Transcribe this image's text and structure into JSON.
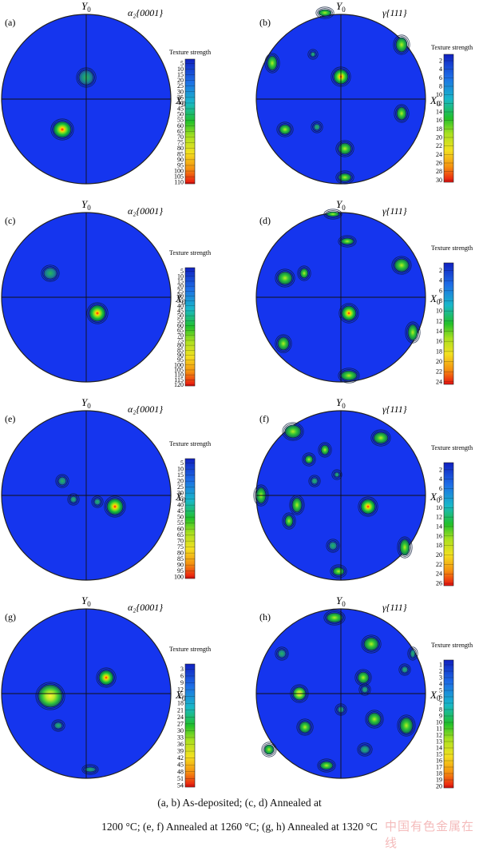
{
  "figure": {
    "axis_labels": {
      "x": "X",
      "x_sub": "0",
      "y": "Y",
      "y_sub": "0"
    },
    "legend_title": "Texture strength",
    "panels": [
      {
        "id": "a",
        "label": "(a)",
        "title": "α₂{0001}",
        "legend_ticks": [
          "5",
          "10",
          "15",
          "20",
          "25",
          "30",
          "35",
          "40",
          "45",
          "50",
          "55",
          "60",
          "65",
          "70",
          "75",
          "80",
          "85",
          "90",
          "95",
          "100",
          "105",
          "110"
        ]
      },
      {
        "id": "b",
        "label": "(b)",
        "title": "γ{111}",
        "legend_ticks": [
          "2",
          "4",
          "6",
          "8",
          "10",
          "12",
          "14",
          "16",
          "18",
          "20",
          "22",
          "24",
          "26",
          "28",
          "30"
        ]
      },
      {
        "id": "c",
        "label": "(c)",
        "title": "α₂{0001}",
        "legend_ticks": [
          "5",
          "10",
          "15",
          "20",
          "25",
          "30",
          "35",
          "40",
          "45",
          "50",
          "55",
          "60",
          "65",
          "70",
          "75",
          "80",
          "85",
          "90",
          "95",
          "100",
          "105",
          "110",
          "115",
          "120"
        ]
      },
      {
        "id": "d",
        "label": "(d)",
        "title": "γ{111}",
        "legend_ticks": [
          "2",
          "4",
          "6",
          "8",
          "10",
          "12",
          "14",
          "16",
          "18",
          "20",
          "22",
          "24"
        ]
      },
      {
        "id": "e",
        "label": "(e)",
        "title": "α₂{0001}",
        "legend_ticks": [
          "5",
          "10",
          "15",
          "20",
          "25",
          "30",
          "35",
          "40",
          "45",
          "50",
          "55",
          "60",
          "65",
          "70",
          "75",
          "80",
          "85",
          "90",
          "95",
          "100"
        ]
      },
      {
        "id": "f",
        "label": "(f)",
        "title": "γ{111}",
        "legend_ticks": [
          "2",
          "4",
          "6",
          "8",
          "10",
          "12",
          "14",
          "16",
          "18",
          "20",
          "22",
          "24",
          "26"
        ]
      },
      {
        "id": "g",
        "label": "(g)",
        "title": "α₂{0001}",
        "legend_ticks": [
          "3",
          "6",
          "9",
          "12",
          "15",
          "18",
          "21",
          "24",
          "27",
          "30",
          "33",
          "36",
          "39",
          "42",
          "45",
          "48",
          "51",
          "54"
        ]
      },
      {
        "id": "h",
        "label": "(h)",
        "title": "γ{111}",
        "legend_ticks": [
          "1",
          "2",
          "3",
          "4",
          "5",
          "6",
          "7",
          "8",
          "9",
          "10",
          "11",
          "12",
          "13",
          "14",
          "15",
          "16",
          "17",
          "18",
          "19",
          "20"
        ]
      }
    ]
  },
  "caption": {
    "line1": "(a, b) As-deposited; (c, d) Annealed at",
    "line2": "1200 °C; (e, f) Annealed at 1260 °C; (g, h) Annealed at 1320 °C"
  },
  "watermark": "中国有色金属在线"
}
